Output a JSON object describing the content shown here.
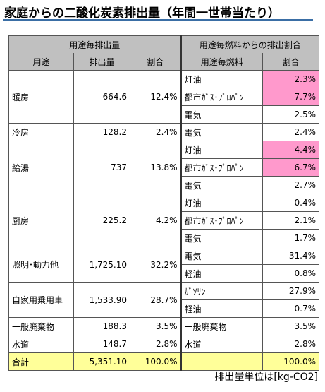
{
  "title": "家庭からの二酸化炭素排出量（年間一世帯当たり）",
  "colors": {
    "header_bg": "#c0c0c0",
    "highlight": "#ff99cc",
    "total_bg": "#ffff99",
    "title_underline": "#3a6ea5"
  },
  "header": {
    "left_group": "用途毎排出量",
    "right_group": "用途毎燃料からの排出割合",
    "col_use": "用途",
    "col_emission": "排出量",
    "col_ratio": "割合",
    "col_fuel": "用途毎燃料",
    "col_fuel_ratio": "割合"
  },
  "groups": [
    {
      "use": "暖房",
      "emission": "664.6",
      "ratio": "12.4%",
      "fuels": [
        {
          "fuel": "灯油",
          "ratio": "2.3%",
          "highlight": true
        },
        {
          "fuel": "都市ｶﾞｽ･ﾌﾟﾛﾊﾟﾝ",
          "ratio": "7.7%",
          "highlight": true
        },
        {
          "fuel": "電気",
          "ratio": "2.5%",
          "highlight": false
        }
      ]
    },
    {
      "use": "冷房",
      "emission": "128.2",
      "ratio": "2.4%",
      "fuels": [
        {
          "fuel": "電気",
          "ratio": "2.4%",
          "highlight": false
        }
      ]
    },
    {
      "use": "給湯",
      "emission": "737",
      "ratio": "13.8%",
      "fuels": [
        {
          "fuel": "灯油",
          "ratio": "4.4%",
          "highlight": true
        },
        {
          "fuel": "都市ｶﾞｽ･ﾌﾟﾛﾊﾟﾝ",
          "ratio": "6.7%",
          "highlight": true
        },
        {
          "fuel": "電気",
          "ratio": "2.7%",
          "highlight": false
        }
      ]
    },
    {
      "use": "厨房",
      "emission": "225.2",
      "ratio": "4.2%",
      "fuels": [
        {
          "fuel": "灯油",
          "ratio": "0.4%",
          "highlight": false
        },
        {
          "fuel": "都市ｶﾞｽ･ﾌﾟﾛﾊﾟﾝ",
          "ratio": "2.1%",
          "highlight": false
        },
        {
          "fuel": "電気",
          "ratio": "1.7%",
          "highlight": false
        }
      ]
    },
    {
      "use": "照明･動力他",
      "emission": "1,725.10",
      "ratio": "32.2%",
      "fuels": [
        {
          "fuel": "電気",
          "ratio": "31.4%",
          "highlight": false
        },
        {
          "fuel": "軽油",
          "ratio": "0.8%",
          "highlight": false
        }
      ]
    },
    {
      "use": "自家用乗用車",
      "emission": "1,533.90",
      "ratio": "28.7%",
      "fuels": [
        {
          "fuel": "ｶﾞｿﾘﾝ",
          "ratio": "27.9%",
          "highlight": false
        },
        {
          "fuel": "軽油",
          "ratio": "0.7%",
          "highlight": false
        }
      ]
    },
    {
      "use": "一般廃棄物",
      "emission": "188.3",
      "ratio": "3.5%",
      "fuels": [
        {
          "fuel": "一般廃棄物",
          "ratio": "3.5%",
          "highlight": false
        }
      ]
    },
    {
      "use": "水道",
      "emission": "148.7",
      "ratio": "2.8%",
      "fuels": [
        {
          "fuel": "水道",
          "ratio": "2.8%",
          "highlight": false
        }
      ]
    }
  ],
  "total": {
    "label": "合計",
    "emission": "5,351.10",
    "ratio": "100.0%",
    "fuel_ratio": "100.0%"
  },
  "unit_note": "排出量単位は[kg-CO2]"
}
